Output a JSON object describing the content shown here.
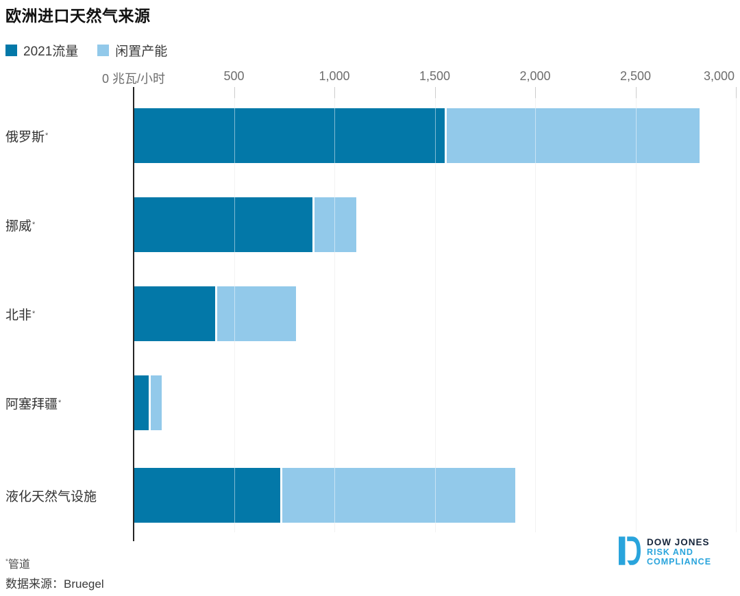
{
  "title": "欧洲进口天然气来源",
  "chart_data": {
    "type": "bar",
    "orientation": "horizontal",
    "stacked": true,
    "title": "欧洲进口天然气来源",
    "x_unit": "兆瓦/小时",
    "xlim": [
      0,
      3000
    ],
    "x_ticks": [
      0,
      500,
      1000,
      1500,
      2000,
      2500,
      3000
    ],
    "x_tick_labels": [
      "0 兆瓦/小时",
      "500",
      "1,000",
      "1,500",
      "2,000",
      "2,500",
      "3,000"
    ],
    "grid": true,
    "legend_position": "top-left",
    "categories": [
      {
        "label": "俄罗斯",
        "footnote_mark": "*"
      },
      {
        "label": "挪威",
        "footnote_mark": "*"
      },
      {
        "label": "北非",
        "footnote_mark": "*"
      },
      {
        "label": "阿塞拜疆",
        "footnote_mark": "*"
      },
      {
        "label": "液化天然气设施",
        "footnote_mark": ""
      }
    ],
    "series": [
      {
        "name": "2021流量",
        "color": "#0378A8",
        "values": [
          1550,
          890,
          405,
          75,
          730
        ]
      },
      {
        "name": "闲置产能",
        "color": "#92C9EA",
        "values": [
          1260,
          210,
          395,
          55,
          1160
        ]
      }
    ]
  },
  "footnote": {
    "mark": "*",
    "note": "管道",
    "source": "数据来源：Bruegel"
  },
  "logo": {
    "name": "Dow Jones Risk and Compliance",
    "line1": "DOW JONES",
    "line2": "RISK AND",
    "line3": "COMPLIANCE",
    "accent_color": "#29A4DC",
    "dark_color": "#16253B"
  },
  "colors": {
    "flow_blue": "#0378A8",
    "idle_blue": "#92C9EA",
    "axis": "#252525",
    "gridline": "#e4e4e4",
    "tick_text": "#6d6d6d",
    "label_text": "#333333"
  }
}
